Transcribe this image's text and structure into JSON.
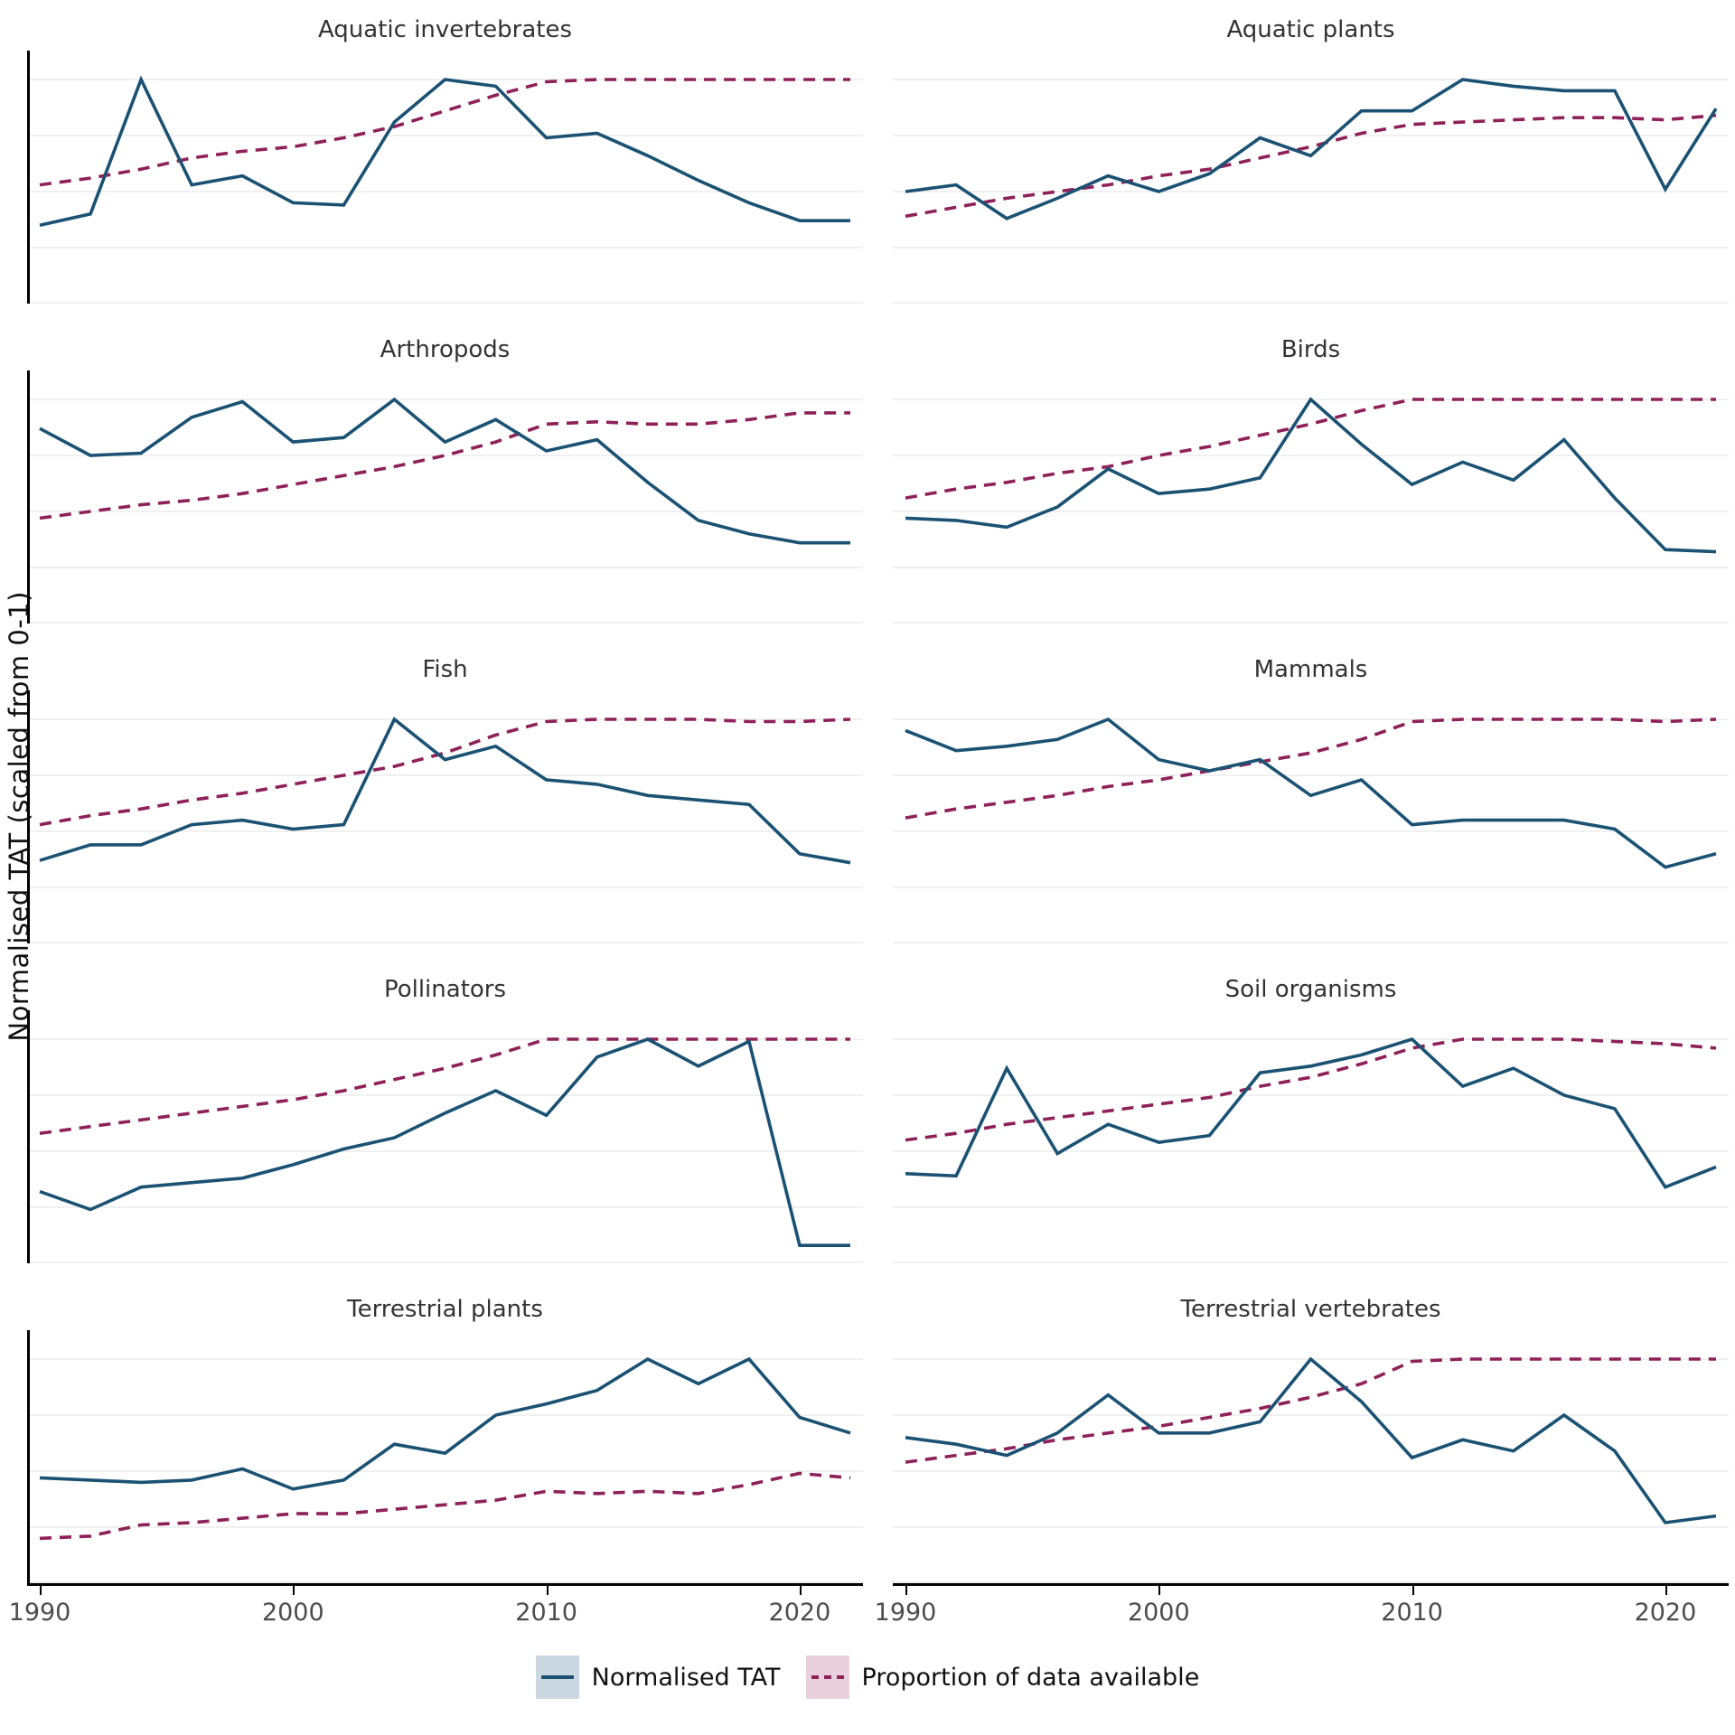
{
  "chart_data": {
    "type": "line",
    "figure_kind": "faceted small-multiples, 2 columns x 5 rows, two series per panel",
    "ylabel": "Normalised TAT (scaled from 0-1)",
    "x_axis": {
      "ticks": [
        "1990",
        "2000",
        "2010",
        "2020"
      ],
      "range": [
        1990,
        2022
      ]
    },
    "y_axis": {
      "range": [
        0,
        1
      ],
      "gridline_values": [
        0,
        0.25,
        0.5,
        0.75,
        1.0
      ],
      "tick_labels_shown": false
    },
    "years": [
      1990,
      1992,
      1994,
      1996,
      1998,
      2000,
      2002,
      2004,
      2006,
      2008,
      2010,
      2012,
      2014,
      2016,
      2018,
      2020,
      2022
    ],
    "legend": {
      "items": [
        {
          "label": "Normalised TAT",
          "style": "solid",
          "line_color": "#1b5273",
          "swatch_color": "#ccd8e1"
        },
        {
          "label": "Proportion of data available",
          "style": "dashed",
          "line_color": "#8e2159",
          "swatch_color": "#e8d1dd"
        }
      ]
    },
    "colors": {
      "tat_line": "#1b5273",
      "prop_line": "#8e2159",
      "gridline": "#ececec",
      "axis": "#000000",
      "title_text": "#333333",
      "tick_text": "#4d4d4d"
    },
    "panels": [
      {
        "title": "Aquatic invertebrates",
        "tat": [
          0.35,
          0.4,
          1.0,
          0.53,
          0.57,
          0.45,
          0.44,
          0.81,
          1.0,
          0.97,
          0.74,
          0.76,
          0.66,
          0.55,
          0.45,
          0.37,
          0.37
        ],
        "prop": [
          0.53,
          0.56,
          0.6,
          0.65,
          0.68,
          0.7,
          0.74,
          0.79,
          0.86,
          0.93,
          0.99,
          1.0,
          1.0,
          1.0,
          1.0,
          1.0,
          1.0
        ]
      },
      {
        "title": "Aquatic plants",
        "tat": [
          0.5,
          0.53,
          0.38,
          0.47,
          0.57,
          0.5,
          0.58,
          0.74,
          0.66,
          0.86,
          0.86,
          1.0,
          0.97,
          0.95,
          0.95,
          0.51,
          0.87
        ],
        "prop": [
          0.39,
          0.43,
          0.47,
          0.5,
          0.53,
          0.57,
          0.6,
          0.65,
          0.7,
          0.76,
          0.8,
          0.81,
          0.82,
          0.83,
          0.83,
          0.82,
          0.84
        ]
      },
      {
        "title": "Arthropods",
        "tat": [
          0.87,
          0.75,
          0.76,
          0.92,
          0.99,
          0.81,
          0.83,
          1.0,
          0.81,
          0.91,
          0.77,
          0.82,
          0.63,
          0.46,
          0.4,
          0.36,
          0.36
        ],
        "prop": [
          0.47,
          0.5,
          0.53,
          0.55,
          0.58,
          0.62,
          0.66,
          0.7,
          0.75,
          0.81,
          0.89,
          0.9,
          0.89,
          0.89,
          0.91,
          0.94,
          0.94
        ]
      },
      {
        "title": "Birds",
        "tat": [
          0.47,
          0.46,
          0.43,
          0.52,
          0.69,
          0.58,
          0.6,
          0.65,
          1.0,
          0.8,
          0.62,
          0.72,
          0.64,
          0.82,
          0.56,
          0.33,
          0.32
        ],
        "prop": [
          0.56,
          0.6,
          0.63,
          0.67,
          0.7,
          0.75,
          0.79,
          0.84,
          0.89,
          0.95,
          1.0,
          1.0,
          1.0,
          1.0,
          1.0,
          1.0,
          1.0
        ]
      },
      {
        "title": "Fish",
        "tat": [
          0.37,
          0.44,
          0.44,
          0.53,
          0.55,
          0.51,
          0.53,
          1.0,
          0.82,
          0.88,
          0.73,
          0.71,
          0.66,
          0.64,
          0.62,
          0.4,
          0.36
        ],
        "prop": [
          0.53,
          0.57,
          0.6,
          0.64,
          0.67,
          0.71,
          0.75,
          0.79,
          0.85,
          0.93,
          0.99,
          1.0,
          1.0,
          1.0,
          0.99,
          0.99,
          1.0
        ]
      },
      {
        "title": "Mammals",
        "tat": [
          0.95,
          0.86,
          0.88,
          0.91,
          1.0,
          0.82,
          0.77,
          0.82,
          0.66,
          0.73,
          0.53,
          0.55,
          0.55,
          0.55,
          0.51,
          0.34,
          0.4
        ],
        "prop": [
          0.56,
          0.6,
          0.63,
          0.66,
          0.7,
          0.73,
          0.77,
          0.81,
          0.85,
          0.91,
          0.99,
          1.0,
          1.0,
          1.0,
          1.0,
          0.99,
          1.0
        ]
      },
      {
        "title": "Pollinators",
        "tat": [
          0.32,
          0.24,
          0.34,
          0.36,
          0.38,
          0.44,
          0.51,
          0.56,
          0.67,
          0.77,
          0.66,
          0.92,
          1.0,
          0.88,
          0.99,
          0.08,
          0.08
        ],
        "prop": [
          0.58,
          0.61,
          0.64,
          0.67,
          0.7,
          0.73,
          0.77,
          0.82,
          0.87,
          0.93,
          1.0,
          1.0,
          1.0,
          1.0,
          1.0,
          1.0,
          1.0
        ]
      },
      {
        "title": "Soil organisms",
        "tat": [
          0.4,
          0.39,
          0.87,
          0.49,
          0.62,
          0.54,
          0.57,
          0.85,
          0.88,
          0.93,
          1.0,
          0.79,
          0.87,
          0.75,
          0.69,
          0.34,
          0.43
        ],
        "prop": [
          0.55,
          0.58,
          0.62,
          0.65,
          0.68,
          0.71,
          0.74,
          0.79,
          0.83,
          0.89,
          0.96,
          1.0,
          1.0,
          1.0,
          0.99,
          0.98,
          0.96
        ]
      },
      {
        "title": "Terrestrial plants",
        "tat": [
          0.47,
          0.46,
          0.45,
          0.46,
          0.51,
          0.42,
          0.46,
          0.62,
          0.58,
          0.75,
          0.8,
          0.86,
          1.0,
          0.89,
          1.0,
          0.74,
          0.67
        ],
        "prop": [
          0.2,
          0.21,
          0.26,
          0.27,
          0.29,
          0.31,
          0.31,
          0.33,
          0.35,
          0.37,
          0.41,
          0.4,
          0.41,
          0.4,
          0.44,
          0.49,
          0.47
        ]
      },
      {
        "title": "Terrestrial vertebrates",
        "tat": [
          0.65,
          0.62,
          0.57,
          0.67,
          0.84,
          0.67,
          0.67,
          0.72,
          1.0,
          0.81,
          0.56,
          0.64,
          0.59,
          0.75,
          0.59,
          0.27,
          0.3
        ],
        "prop": [
          0.54,
          0.57,
          0.6,
          0.64,
          0.67,
          0.7,
          0.74,
          0.78,
          0.83,
          0.89,
          0.99,
          1.0,
          1.0,
          1.0,
          1.0,
          1.0,
          1.0
        ]
      }
    ]
  }
}
